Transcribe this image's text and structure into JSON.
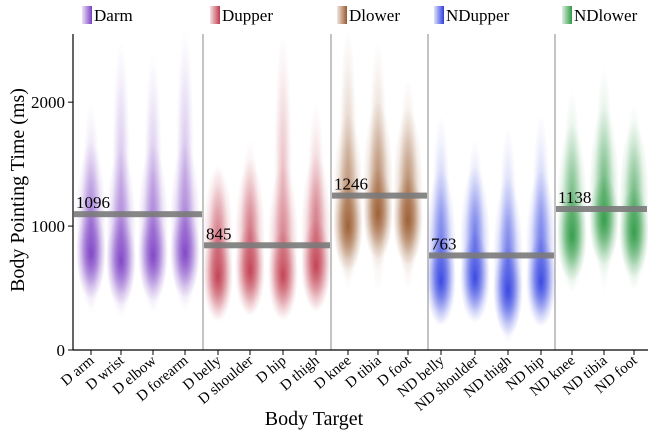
{
  "chart_data": {
    "type": "violin",
    "title": "",
    "xlabel": "Body Target",
    "ylabel": "Body Pointing Time (ms)",
    "ylim": [
      0,
      2550
    ],
    "yticks": [
      0,
      1000,
      2000
    ],
    "grid": false,
    "legend_placement": "top",
    "groups": [
      {
        "name": "Darm",
        "color": "#7b3fc4",
        "mean": 1096,
        "mean_label": "1096",
        "categories": [
          "D arm",
          "D wrist",
          "D elbow",
          "D forearm"
        ],
        "medians": [
          780,
          720,
          760,
          780
        ],
        "extents": [
          [
            280,
            2000
          ],
          [
            250,
            2500
          ],
          [
            280,
            2400
          ],
          [
            300,
            2600
          ]
        ]
      },
      {
        "name": "Dupper",
        "color": "#c0394b",
        "mean": 845,
        "mean_label": "845",
        "categories": [
          "D belly",
          "D shoulder",
          "D hip",
          "D thigh"
        ],
        "medians": [
          590,
          640,
          600,
          680
        ],
        "extents": [
          [
            250,
            1500
          ],
          [
            280,
            1700
          ],
          [
            260,
            2550
          ],
          [
            300,
            2000
          ]
        ]
      },
      {
        "name": "Dlower",
        "color": "#9a5a2e",
        "mean": 1246,
        "mean_label": "1246",
        "categories": [
          "D knee",
          "D tibia",
          "D foot"
        ],
        "medians": [
          1000,
          1100,
          1050
        ],
        "extents": [
          [
            450,
            2600
          ],
          [
            450,
            2500
          ],
          [
            450,
            2200
          ]
        ]
      },
      {
        "name": "NDupper",
        "color": "#2f3fe0",
        "mean": 763,
        "mean_label": "763",
        "categories": [
          "ND belly",
          "ND shoulder",
          "ND thigh",
          "ND hip"
        ],
        "medians": [
          560,
          580,
          480,
          550
        ],
        "extents": [
          [
            200,
            1900
          ],
          [
            250,
            1700
          ],
          [
            60,
            1800
          ],
          [
            200,
            1900
          ]
        ]
      },
      {
        "name": "NDlower",
        "color": "#2e9a45",
        "mean": 1138,
        "mean_label": "1138",
        "categories": [
          "ND knee",
          "ND tibia",
          "ND foot"
        ],
        "medians": [
          920,
          1050,
          950
        ],
        "extents": [
          [
            450,
            2100
          ],
          [
            450,
            2300
          ],
          [
            450,
            2000
          ]
        ]
      }
    ]
  }
}
